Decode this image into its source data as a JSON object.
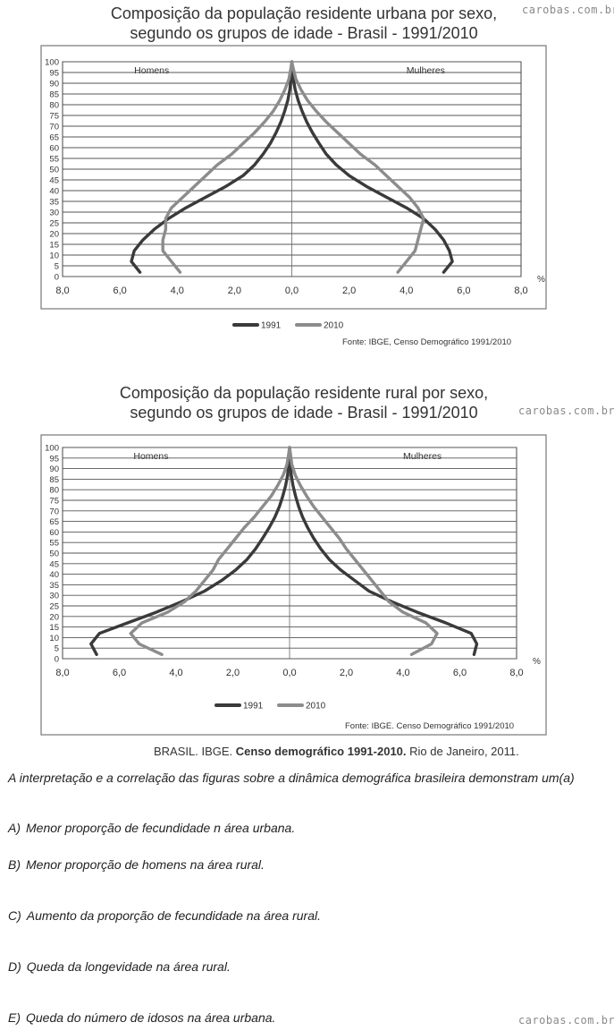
{
  "watermark": "carobas.com.br",
  "chart_data": [
    {
      "type": "line",
      "title": "Composição da população residente urbana por sexo,\nsegundo os grupos de idade - Brasil - 1991/2010",
      "left_label": "Homens",
      "right_label": "Mulheres",
      "percent_label": "%",
      "x_ticks": [
        "8,0",
        "6,0",
        "4,0",
        "2,0",
        "0,0",
        "2,0",
        "4,0",
        "6,0",
        "8,0"
      ],
      "y_ticks": [
        "100",
        "95",
        "90",
        "85",
        "80",
        "75",
        "70",
        "65",
        "60",
        "55",
        "50",
        "45",
        "40",
        "35",
        "30",
        "25",
        "20",
        "15",
        "10",
        "5",
        "0"
      ],
      "xlim": [
        -8,
        8
      ],
      "ylim": [
        0,
        100
      ],
      "series": [
        {
          "name": "1991",
          "color": "#3a3a3a",
          "ages": [
            2,
            7,
            12,
            17,
            22,
            27,
            32,
            37,
            42,
            47,
            52,
            57,
            62,
            67,
            72,
            77,
            82,
            87,
            92,
            97
          ],
          "men": [
            5.3,
            5.6,
            5.5,
            5.2,
            4.8,
            4.3,
            3.7,
            3.0,
            2.3,
            1.7,
            1.3,
            1.0,
            0.75,
            0.55,
            0.38,
            0.25,
            0.14,
            0.07,
            0.03,
            0.01
          ],
          "women": [
            5.3,
            5.6,
            5.5,
            5.3,
            5.0,
            4.6,
            4.0,
            3.3,
            2.6,
            2.0,
            1.55,
            1.2,
            0.95,
            0.72,
            0.52,
            0.36,
            0.22,
            0.12,
            0.05,
            0.02
          ]
        },
        {
          "name": "2010",
          "color": "#8c8c8c",
          "ages": [
            2,
            7,
            12,
            17,
            22,
            27,
            32,
            37,
            42,
            47,
            52,
            57,
            62,
            67,
            72,
            77,
            82,
            87,
            92,
            97
          ],
          "men": [
            3.9,
            4.2,
            4.5,
            4.5,
            4.4,
            4.4,
            4.2,
            3.8,
            3.4,
            3.0,
            2.6,
            2.1,
            1.7,
            1.3,
            0.95,
            0.65,
            0.42,
            0.24,
            0.1,
            0.03
          ],
          "women": [
            3.7,
            4.0,
            4.3,
            4.4,
            4.5,
            4.6,
            4.4,
            4.1,
            3.7,
            3.3,
            2.9,
            2.4,
            2.0,
            1.6,
            1.2,
            0.85,
            0.55,
            0.32,
            0.14,
            0.05
          ]
        }
      ],
      "legend": [
        "1991",
        "2010"
      ],
      "source": "Fonte: IBGE, Censo Demográfico 1991/2010"
    },
    {
      "type": "line",
      "title": "Composição da população residente rural por sexo,\nsegundo os grupos de idade - Brasil - 1991/2010",
      "left_label": "Homens",
      "right_label": "Mulheres",
      "percent_label": "%",
      "x_ticks": [
        "8,0",
        "6,0",
        "4,0",
        "2,0",
        "0,0",
        "2,0",
        "4,0",
        "6,0",
        "8,0"
      ],
      "y_ticks": [
        "100",
        "95",
        "90",
        "85",
        "80",
        "75",
        "70",
        "65",
        "60",
        "55",
        "50",
        "45",
        "40",
        "35",
        "30",
        "25",
        "20",
        "15",
        "10",
        "5",
        "0"
      ],
      "xlim": [
        -8,
        8
      ],
      "ylim": [
        0,
        100
      ],
      "series": [
        {
          "name": "1991",
          "color": "#3a3a3a",
          "ages": [
            2,
            7,
            12,
            17,
            22,
            27,
            32,
            37,
            42,
            47,
            52,
            57,
            62,
            67,
            72,
            77,
            82,
            87,
            92,
            97
          ],
          "men": [
            6.8,
            7.0,
            6.7,
            5.7,
            4.7,
            3.8,
            3.0,
            2.4,
            1.9,
            1.5,
            1.2,
            0.95,
            0.72,
            0.52,
            0.36,
            0.24,
            0.14,
            0.07,
            0.03,
            0.01
          ],
          "women": [
            6.5,
            6.6,
            6.4,
            5.5,
            4.5,
            3.6,
            2.8,
            2.3,
            1.8,
            1.4,
            1.1,
            0.85,
            0.64,
            0.46,
            0.32,
            0.21,
            0.12,
            0.06,
            0.03,
            0.01
          ]
        },
        {
          "name": "2010",
          "color": "#8c8c8c",
          "ages": [
            2,
            7,
            12,
            17,
            22,
            27,
            32,
            37,
            42,
            47,
            52,
            57,
            62,
            67,
            72,
            77,
            82,
            87,
            92,
            97
          ],
          "men": [
            4.5,
            5.3,
            5.6,
            5.2,
            4.3,
            3.7,
            3.3,
            3.0,
            2.7,
            2.5,
            2.2,
            1.9,
            1.6,
            1.25,
            0.95,
            0.65,
            0.42,
            0.22,
            0.09,
            0.03
          ],
          "women": [
            4.3,
            5.0,
            5.2,
            4.8,
            4.0,
            3.5,
            3.2,
            2.9,
            2.6,
            2.3,
            2.0,
            1.75,
            1.45,
            1.15,
            0.85,
            0.6,
            0.38,
            0.2,
            0.08,
            0.03
          ]
        }
      ],
      "legend": [
        "1991",
        "2010"
      ],
      "source": "Fonte: IBGE. Censo Demográfico 1991/2010"
    }
  ],
  "citation": {
    "prefix": "BRASIL. IBGE. ",
    "bold": "Censo demográfico 1991-2010.",
    "suffix": " Rio de Janeiro, 2011."
  },
  "question": "A interpretação e a correlação das figuras sobre a dinâmica demográfica brasileira demonstram um(a)",
  "options": [
    {
      "letter": "A)",
      "text": "Menor proporção de fecundidade n área urbana."
    },
    {
      "letter": "B)",
      "text": "Menor proporção de homens na área rural."
    },
    {
      "letter": "C)",
      "text": "Aumento da proporção de fecundidade na área rural."
    },
    {
      "letter": "D)",
      "text": "Queda da longevidade na área rural."
    },
    {
      "letter": "E)",
      "text": "Queda do número de idosos na área urbana."
    }
  ]
}
